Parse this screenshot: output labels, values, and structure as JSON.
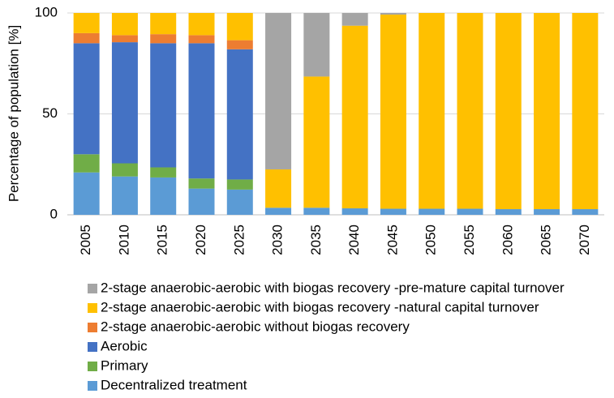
{
  "chart_data": {
    "type": "stacked_bar",
    "ylabel": "Percentage of population  [%]",
    "categories": [
      "2005",
      "2010",
      "2015",
      "2020",
      "2025",
      "2030",
      "2035",
      "2040",
      "2045",
      "2050",
      "2055",
      "2060",
      "2065",
      "2070"
    ],
    "ylim": [
      0,
      100
    ],
    "yticks": [
      0,
      50,
      100
    ],
    "grid": true,
    "series": [
      {
        "name": "Decentralized treatment",
        "color": "#5b9bd5",
        "values": [
          21,
          19,
          18.5,
          13,
          12.5,
          3.5,
          3.5,
          3.2,
          3,
          3,
          3,
          2.8,
          2.8,
          2.8
        ]
      },
      {
        "name": "Primary",
        "color": "#70ad47",
        "values": [
          9,
          6.5,
          5,
          5,
          5,
          0,
          0,
          0,
          0,
          0,
          0,
          0,
          0,
          0
        ]
      },
      {
        "name": "Aerobic",
        "color": "#4472c4",
        "values": [
          55,
          60,
          61.5,
          67,
          64.5,
          0,
          0,
          0,
          0,
          0,
          0,
          0,
          0,
          0
        ]
      },
      {
        "name": "2-stage anaerobic-aerobic without biogas recovery",
        "color": "#ed7d31",
        "values": [
          5,
          3.5,
          4.5,
          4,
          4.5,
          0,
          0,
          0,
          0,
          0,
          0,
          0,
          0,
          0
        ]
      },
      {
        "name": "2-stage anaerobic-aerobic with biogas recovery -natural capital turnover",
        "color": "#ffc000",
        "values": [
          10,
          11,
          10.5,
          11,
          13.5,
          19,
          65,
          90.5,
          96.2,
          97,
          97,
          97.2,
          97.2,
          97.2
        ]
      },
      {
        "name": "2-stage anaerobic-aerobic with biogas recovery -pre-mature capital turnover",
        "color": "#a5a5a5",
        "values": [
          0,
          0,
          0,
          0,
          0,
          77.5,
          31.5,
          6.3,
          0.8,
          0,
          0,
          0,
          0,
          0
        ]
      }
    ]
  }
}
